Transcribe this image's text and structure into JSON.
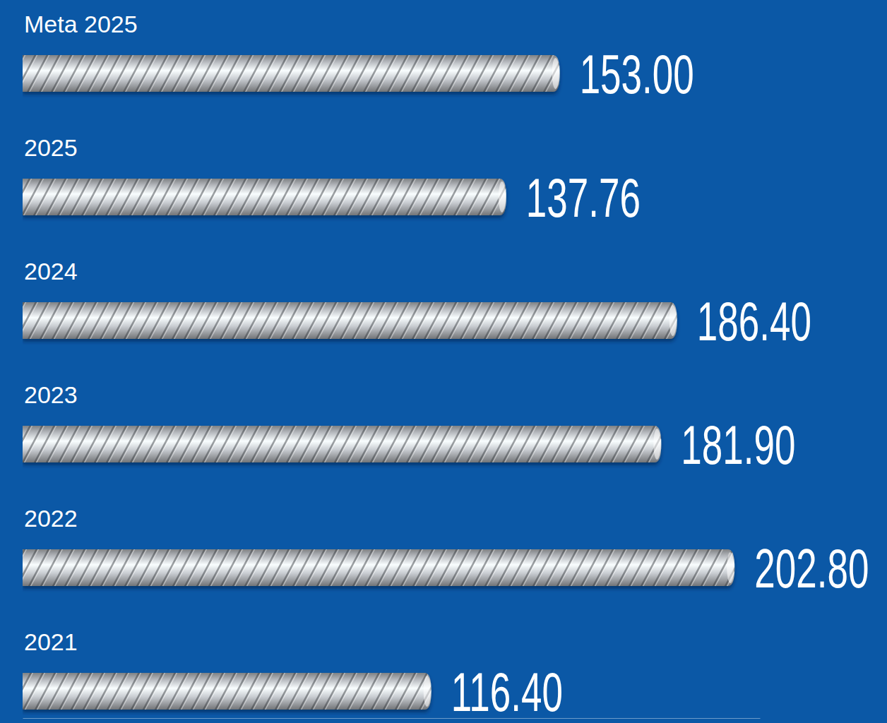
{
  "chart_data": {
    "type": "bar",
    "orientation": "horizontal",
    "categories": [
      "Meta 2025",
      "2025",
      "2024",
      "2023",
      "2022",
      "2021"
    ],
    "values": [
      153.0,
      137.76,
      186.4,
      181.9,
      202.8,
      116.4
    ],
    "value_labels": [
      "153.00",
      "137.76",
      "186.40",
      "181.90",
      "202.80",
      "116.40"
    ],
    "color": "#c9cdd2",
    "xlim": [
      0,
      210
    ],
    "data_labels": true,
    "tick_labels": false,
    "grid": false
  }
}
